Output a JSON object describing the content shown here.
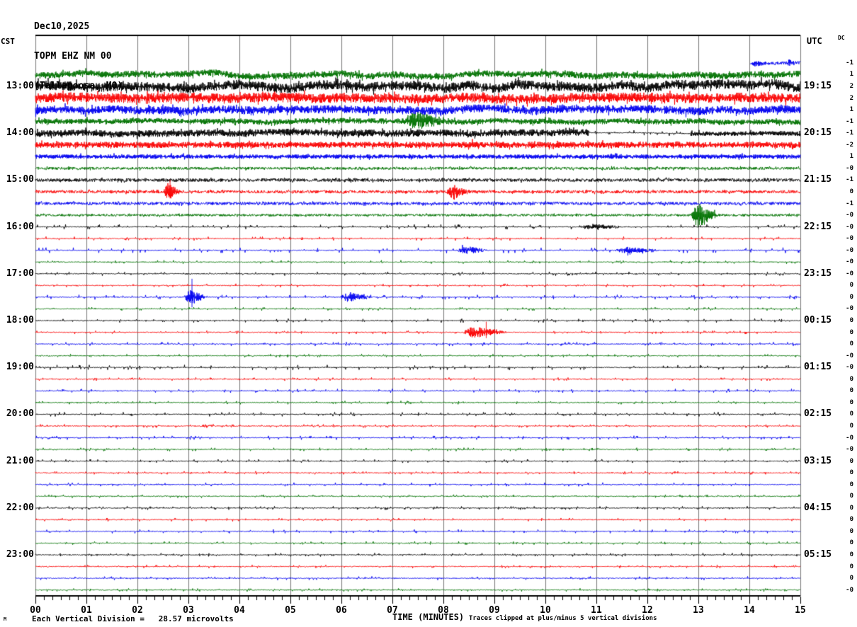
{
  "header": {
    "date": "Dec10,2025",
    "station": "TOPM EHZ NM 00",
    "location": "(Tallapoosa, MO)"
  },
  "axis": {
    "left_timezone": "CST",
    "right_timezone": "UTC",
    "dc_header": "DC",
    "x_title": "TIME (MINUTES)",
    "x_tick_labels": [
      "00",
      "01",
      "02",
      "03",
      "04",
      "05",
      "06",
      "07",
      "08",
      "09",
      "10",
      "11",
      "12",
      "13",
      "14",
      "15"
    ]
  },
  "footer": {
    "corner_glyph": "M",
    "scale_note": "Each Vertical Division =   28.57 microvolts",
    "clip_note": "Traces clipped at plus/minus 5 vertical divisions"
  },
  "colors": {
    "black": "#000000",
    "red": "#fa0000",
    "blue": "#0000f0",
    "green": "#007200",
    "grid": "#7b7b7b",
    "background": "#ffffff"
  },
  "chart_data": {
    "type": "line",
    "title": "TOPM EHZ NM 00 (Tallapoosa, MO) helicorder, Dec10,2025",
    "x_axis": {
      "label": "TIME (MINUTES)",
      "min": 0,
      "max": 15,
      "major_tick_minutes": 1,
      "minor_tick_seconds": 10,
      "grid": true
    },
    "row_duration_minutes": 15,
    "left_axis_hours_cst": [
      "13:00",
      "14:00",
      "15:00",
      "16:00",
      "17:00",
      "18:00",
      "19:00",
      "20:00",
      "21:00",
      "22:00",
      "23:00"
    ],
    "right_axis_hours_utc": [
      "19:15",
      "20:15",
      "21:15",
      "22:15",
      "23:15",
      "00:15",
      "01:15",
      "02:15",
      "03:15",
      "04:15",
      "05:15"
    ],
    "traces": [
      {
        "cst": "12:30",
        "color": "blue",
        "dc": "-1",
        "amp": 2.2,
        "start": 14.02,
        "wander": 2,
        "events": [
          [
            14.02,
            14.5,
            5
          ],
          [
            14.72,
            15,
            5.5
          ]
        ]
      },
      {
        "cst": "12:45",
        "color": "green",
        "dc": "1",
        "amp": 4.6,
        "wander": 3.5
      },
      {
        "cst": "13:00",
        "utc": "19:15",
        "color": "black",
        "dc": "2",
        "amp": 6.8,
        "wander": 3.5
      },
      {
        "cst": "13:15",
        "color": "red",
        "dc": "2",
        "amp": 6.8,
        "wander": 2
      },
      {
        "cst": "13:30",
        "color": "blue",
        "dc": "1",
        "amp": 5.8,
        "wander": 2
      },
      {
        "cst": "13:45",
        "color": "green",
        "dc": "-1",
        "amp": 3.8,
        "wander": 1.5,
        "events": [
          [
            7.15,
            8.4,
            15
          ]
        ]
      },
      {
        "cst": "14:00",
        "utc": "20:15",
        "color": "black",
        "dc": "-1",
        "amp": 4.8,
        "wander": 1.5,
        "segments": [
          [
            10.85,
            12.85,
            1.3
          ],
          [
            12.85,
            15,
            3.2
          ]
        ]
      },
      {
        "cst": "14:15",
        "color": "red",
        "dc": "-2",
        "amp": 4.3,
        "events": [
          [
            7.9,
            10.6,
            5.5
          ]
        ]
      },
      {
        "cst": "14:30",
        "color": "blue",
        "dc": "1",
        "amp": 3.0
      },
      {
        "cst": "14:45",
        "color": "green",
        "dc": "-0",
        "amp": 1.9
      },
      {
        "cst": "15:00",
        "utc": "21:15",
        "color": "black",
        "dc": "-1",
        "amp": 2.3
      },
      {
        "cst": "15:15",
        "color": "red",
        "dc": "0",
        "amp": 2.1,
        "events": [
          [
            2.5,
            2.95,
            13
          ],
          [
            8.05,
            8.6,
            13
          ]
        ],
        "spikes": [
          [
            2.64,
            17
          ]
        ]
      },
      {
        "cst": "15:30",
        "color": "blue",
        "dc": "-1",
        "amp": 2.1
      },
      {
        "cst": "15:45",
        "color": "green",
        "dc": "-0",
        "amp": 1.6,
        "events": [
          [
            10.45,
            11.05,
            2.6
          ],
          [
            12.85,
            13.5,
            20
          ]
        ]
      },
      {
        "cst": "16:00",
        "utc": "22:15",
        "color": "black",
        "dc": "-0",
        "amp": 1.3,
        "events": [
          [
            10.6,
            11.9,
            4.5
          ]
        ]
      },
      {
        "cst": "16:15",
        "color": "red",
        "dc": "-0",
        "amp": 1.0
      },
      {
        "cst": "16:30",
        "color": "blue",
        "dc": "-0",
        "amp": 1.4,
        "events": [
          [
            8.25,
            9.05,
            7
          ],
          [
            11.3,
            12.6,
            5
          ]
        ]
      },
      {
        "cst": "16:45",
        "color": "green",
        "dc": "-0",
        "amp": 0.9
      },
      {
        "cst": "17:00",
        "utc": "23:15",
        "color": "black",
        "dc": "-0",
        "amp": 1.0
      },
      {
        "cst": "17:15",
        "color": "red",
        "dc": "0",
        "amp": 0.9
      },
      {
        "cst": "17:30",
        "color": "blue",
        "dc": "0",
        "amp": 1.2,
        "events": [
          [
            2.9,
            3.5,
            11
          ],
          [
            5.95,
            6.75,
            8
          ]
        ],
        "spikes": [
          [
            3.07,
            26
          ]
        ]
      },
      {
        "cst": "17:45",
        "color": "green",
        "dc": "-0",
        "amp": 0.9
      },
      {
        "cst": "18:00",
        "utc": "00:15",
        "color": "black",
        "dc": "0",
        "amp": 1.0
      },
      {
        "cst": "18:15",
        "color": "red",
        "dc": "0",
        "amp": 0.9,
        "events": [
          [
            8.35,
            9.45,
            9
          ]
        ],
        "spikes": [
          [
            8.84,
            15
          ]
        ]
      },
      {
        "cst": "18:30",
        "color": "blue",
        "dc": "0",
        "amp": 1.0
      },
      {
        "cst": "18:45",
        "color": "green",
        "dc": "-0",
        "amp": 0.85
      },
      {
        "cst": "19:00",
        "utc": "01:15",
        "color": "black",
        "dc": "-0",
        "amp": 1.3
      },
      {
        "cst": "19:15",
        "color": "red",
        "dc": "0",
        "amp": 0.85
      },
      {
        "cst": "19:30",
        "color": "blue",
        "dc": "0",
        "amp": 1.0
      },
      {
        "cst": "19:45",
        "color": "green",
        "dc": "0",
        "amp": 0.9
      },
      {
        "cst": "20:00",
        "utc": "02:15",
        "color": "black",
        "dc": "0",
        "amp": 1.1
      },
      {
        "cst": "20:15",
        "color": "red",
        "dc": "0",
        "amp": 0.85,
        "events": [
          [
            3.15,
            3.75,
            2.8
          ]
        ]
      },
      {
        "cst": "20:30",
        "color": "blue",
        "dc": "-0",
        "amp": 1.0
      },
      {
        "cst": "20:45",
        "color": "green",
        "dc": "-0",
        "amp": 0.85
      },
      {
        "cst": "21:00",
        "utc": "03:15",
        "color": "black",
        "dc": "0",
        "amp": 0.9
      },
      {
        "cst": "21:15",
        "color": "red",
        "dc": "0",
        "amp": 0.85
      },
      {
        "cst": "21:30",
        "color": "blue",
        "dc": "0",
        "amp": 1.0
      },
      {
        "cst": "21:45",
        "color": "green",
        "dc": "0",
        "amp": 0.85
      },
      {
        "cst": "22:00",
        "utc": "04:15",
        "color": "black",
        "dc": "0",
        "amp": 0.9
      },
      {
        "cst": "22:15",
        "color": "red",
        "dc": "0",
        "amp": 0.85
      },
      {
        "cst": "22:30",
        "color": "blue",
        "dc": "0",
        "amp": 1.0
      },
      {
        "cst": "22:45",
        "color": "green",
        "dc": "0",
        "amp": 0.85
      },
      {
        "cst": "23:00",
        "utc": "05:15",
        "color": "black",
        "dc": "0",
        "amp": 0.9
      },
      {
        "cst": "23:15",
        "color": "red",
        "dc": "0",
        "amp": 0.85
      },
      {
        "cst": "23:30",
        "color": "blue",
        "dc": "0",
        "amp": 1.0
      },
      {
        "cst": "23:45",
        "color": "green",
        "dc": "-0",
        "amp": 0.85
      }
    ],
    "notes": {
      "vertical_division": "28.57 microvolts",
      "clipping": "plus/minus 5 vertical divisions"
    }
  }
}
